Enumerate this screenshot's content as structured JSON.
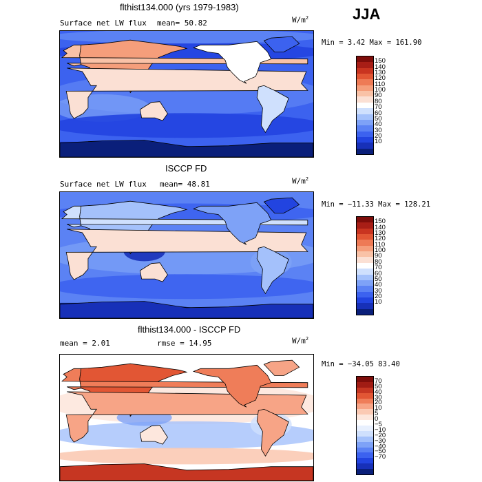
{
  "season": "JJA",
  "colors": {
    "abs_scale": [
      "#0a1f7a",
      "#1730b8",
      "#2244e0",
      "#3c62ef",
      "#5b82f4",
      "#7ea2f7",
      "#a4c1fb",
      "#cfe0fd",
      "#ffffff",
      "#fbe0d4",
      "#f9c2a7",
      "#f59e7b",
      "#ee7a55",
      "#e25634",
      "#c93420",
      "#a81e16",
      "#7e0d0a"
    ],
    "diff_scale": [
      "#0a1f7a",
      "#1730b8",
      "#2244e0",
      "#3c62ef",
      "#5b82f4",
      "#7ea2f7",
      "#a4c1fb",
      "#cfe0fd",
      "#e8f0fe",
      "#ffffff",
      "#fde7dd",
      "#fbcab4",
      "#f7a486",
      "#ef7d59",
      "#e25634",
      "#c63622",
      "#a11c14",
      "#7e0d0a"
    ],
    "land_outline": "#000000"
  },
  "panels": [
    {
      "title": "flthist134.000 (yrs 1979-1983)",
      "left_label": "Surface net LW flux",
      "stat_text": "mean=  50.82",
      "units": "W/m",
      "units_sup": "2",
      "minmax": "Min =    3.42 Max = 161.90"
    },
    {
      "title": "ISCCP FD",
      "left_label": "Surface net LW flux",
      "stat_text": "mean=  48.81",
      "units": "W/m",
      "units_sup": "2",
      "minmax": "Min = −11.33 Max = 128.21"
    },
    {
      "title": "flthist134.000 - ISCCP FD",
      "left_label": "mean =   2.01",
      "stat_text": "rmse =  14.95",
      "units": "W/m",
      "units_sup": "2",
      "minmax": "Min = −34.05  83.40"
    }
  ],
  "chart_data": [
    {
      "type": "heatmap",
      "title": "flthist134.000 (yrs 1979-1983)",
      "variable": "Surface net LW flux",
      "mean": 50.82,
      "min": 3.42,
      "max": 161.9,
      "units": "W/m2",
      "colorbar_levels": [
        "150",
        "140",
        "130",
        "120",
        "110",
        "100",
        "90",
        "80",
        "70",
        "60",
        "50",
        "40",
        "30",
        "20",
        "10"
      ],
      "colorbar_range": [
        0,
        160
      ]
    },
    {
      "type": "heatmap",
      "title": "ISCCP FD",
      "variable": "Surface net LW flux",
      "mean": 48.81,
      "min": -11.33,
      "max": 128.21,
      "units": "W/m2",
      "colorbar_levels": [
        "150",
        "140",
        "130",
        "120",
        "110",
        "100",
        "90",
        "80",
        "70",
        "60",
        "50",
        "40",
        "30",
        "20",
        "10"
      ],
      "colorbar_range": [
        0,
        160
      ]
    },
    {
      "type": "heatmap",
      "title": "flthist134.000 - ISCCP FD",
      "mean": 2.01,
      "rmse": 14.95,
      "min": -34.05,
      "max": 83.4,
      "units": "W/m2",
      "colorbar_levels": [
        "70",
        "50",
        "40",
        "30",
        "20",
        "10",
        "5",
        "0",
        "−5",
        "−10",
        "−20",
        "−30",
        "−40",
        "−50",
        "−70"
      ],
      "colorbar_range": [
        -80,
        80
      ]
    }
  ]
}
